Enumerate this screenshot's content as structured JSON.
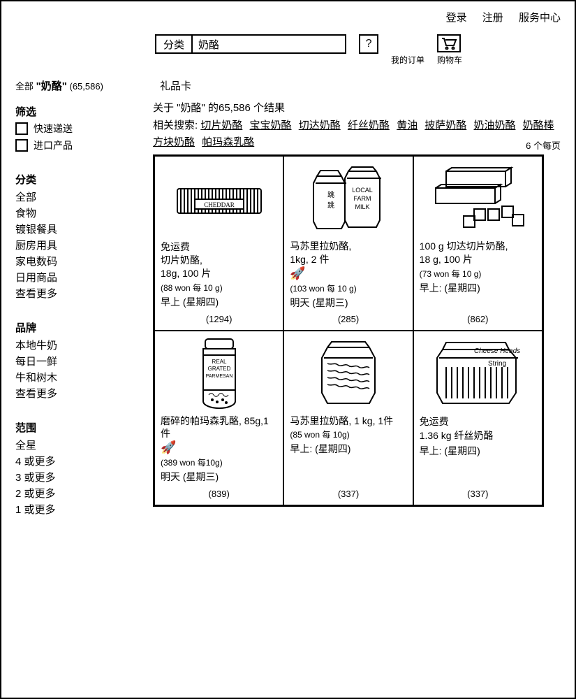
{
  "top": {
    "login": "登录",
    "register": "注册",
    "service": "服务中心"
  },
  "search": {
    "category": "分类",
    "term": "奶酪",
    "help": "?",
    "my_orders": "我的订单",
    "cart": "购物车"
  },
  "sidebar": {
    "all_prefix": "全部",
    "term_quoted": "\"奶酪\"",
    "count": "(65,586)",
    "filter_title": "筛选",
    "filters": [
      "快速递送",
      "进口产品"
    ],
    "category_title": "分类",
    "categories": [
      "全部",
      "食物",
      "镀银餐具",
      "厨房用具",
      "家电数码",
      "日用商品",
      "查看更多"
    ],
    "brand_title": "品牌",
    "brands": [
      "本地牛奶",
      "每日一鲜",
      "牛和树木",
      "查看更多"
    ],
    "range_title": "范围",
    "ranges": [
      "全星",
      "4 或更多",
      "3 或更多",
      "2 或更多",
      "1 或更多"
    ]
  },
  "content": {
    "giftcard": "礼品卡",
    "results_text": "关于 \"奶酪\" 的65,586 个结果",
    "related_label": "相关搜索:",
    "related_row1": [
      "切片奶酪",
      "宝宝奶酪",
      "切达奶酪",
      "纤丝奶酪",
      "黄油",
      "披萨奶酪",
      "奶油奶酪",
      "奶酪棒"
    ],
    "related_row2": [
      "方块奶酪",
      "帕玛森乳酪"
    ],
    "per_page": "6 个每页"
  },
  "products": [
    {
      "image_label": "CHEDDAR",
      "free_ship": "免运费",
      "name": "切片奶酪,",
      "spec": "18g, 100 片",
      "unit": "(88 won 每 10 g)",
      "ship": "早上 (星期四)",
      "rocket": false,
      "reviews": "(1294)"
    },
    {
      "image_label": "LOCAL FARM MILK",
      "free_ship": "",
      "name": "马苏里拉奶酪,",
      "spec": "1kg, 2 件",
      "unit": "(103 won 每 10 g)",
      "ship": "明天 (星期三)",
      "rocket": true,
      "reviews": "(285)"
    },
    {
      "image_label": "",
      "free_ship": "",
      "name": "100 g 切达切片奶酪,",
      "spec": "18 g, 100 片",
      "unit": "(73 won 每 10 g)",
      "ship": "早上: (星期四)",
      "rocket": false,
      "reviews": "(862)"
    },
    {
      "image_label": "REAL GRATED PARMESAN",
      "free_ship": "",
      "name": "磨碎的帕玛森乳酪, 85g,1 件",
      "spec": "",
      "unit": "(389 won 每10g)",
      "ship": "明天 (星期三)",
      "rocket": true,
      "reviews": "(839)"
    },
    {
      "image_label": "",
      "free_ship": "",
      "name": "马苏里拉奶酪, 1 kg, 1件",
      "spec": "",
      "unit": "(85 won 每 10g)",
      "ship": "早上: (星期四)",
      "rocket": false,
      "reviews": "(337)"
    },
    {
      "image_label": "Cheese Heads String",
      "free_ship": "免运费",
      "name": "",
      "spec": "1.36 kg 纤丝奶酪",
      "unit": "",
      "ship": "早上: (星期四)",
      "rocket": false,
      "reviews": "(337)"
    }
  ]
}
